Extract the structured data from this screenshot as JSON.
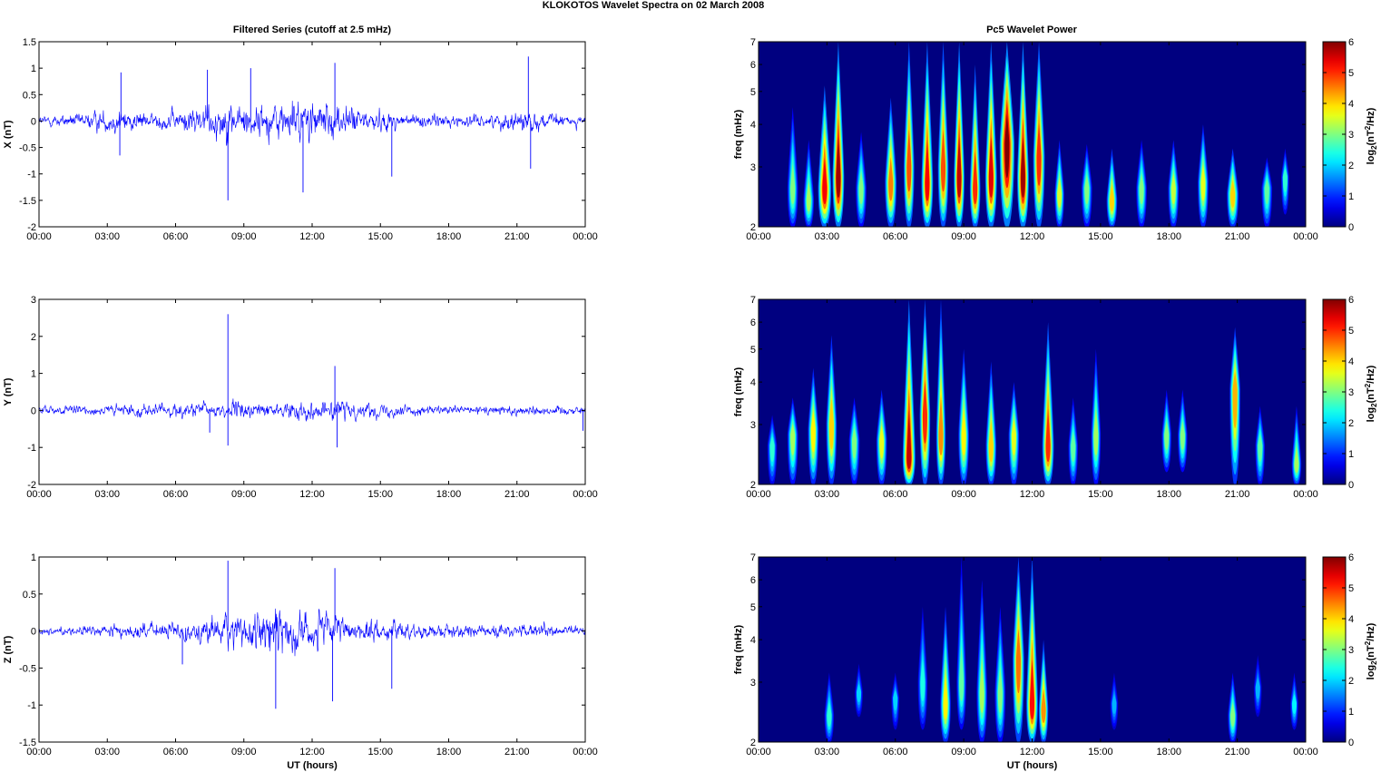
{
  "figure_title": "KLOKOTOS Wavelet Spectra on 02 March     2008",
  "left_column_title": "Filtered Series (cutoff at 2.5 mHz)",
  "right_column_title": "Pc5 Wavelet Power",
  "colors": {
    "trace": "#0000ff",
    "axis": "#000000",
    "background": "#ffffff"
  },
  "chart_data": [
    {
      "type": "line",
      "component": "X",
      "ylabel": "X (nT)",
      "xlabel": "",
      "xticks": [
        "00:00",
        "03:00",
        "06:00",
        "09:00",
        "12:00",
        "15:00",
        "18:00",
        "21:00",
        "00:00"
      ],
      "xlim_hours": [
        0,
        24
      ],
      "ylim": [
        -2,
        1.5
      ],
      "yticks": [
        -2,
        -1.5,
        -1,
        -0.5,
        0,
        0.5,
        1,
        1.5
      ],
      "ytick_labels": [
        "-2",
        "-1.5",
        "-1",
        "-0.5",
        "0",
        "0.5",
        "1",
        "1.5"
      ],
      "envelope": {
        "hours": [
          0,
          2,
          3,
          3.6,
          5,
          6,
          7,
          8.3,
          9,
          10.5,
          12,
          13,
          14,
          15,
          16,
          18,
          20,
          21,
          21.8,
          23,
          24
        ],
        "amplitude": [
          0.1,
          0.15,
          0.22,
          0.25,
          0.15,
          0.2,
          0.3,
          0.4,
          0.35,
          0.4,
          0.45,
          0.35,
          0.25,
          0.2,
          0.15,
          0.12,
          0.12,
          0.25,
          0.2,
          0.12,
          0.1
        ]
      },
      "spikes": [
        {
          "hour": 3.6,
          "value": 0.92
        },
        {
          "hour": 3.55,
          "value": -0.65
        },
        {
          "hour": 8.3,
          "value": -1.5
        },
        {
          "hour": 7.4,
          "value": 0.97
        },
        {
          "hour": 9.3,
          "value": 1.0
        },
        {
          "hour": 11.6,
          "value": -1.35
        },
        {
          "hour": 13.0,
          "value": 1.1
        },
        {
          "hour": 15.5,
          "value": -1.05
        },
        {
          "hour": 21.5,
          "value": 1.22
        },
        {
          "hour": 21.6,
          "value": -0.9
        }
      ]
    },
    {
      "type": "line",
      "component": "Y",
      "ylabel": "Y (nT)",
      "xlabel": "",
      "xticks": [
        "00:00",
        "03:00",
        "06:00",
        "09:00",
        "12:00",
        "15:00",
        "18:00",
        "21:00",
        "00:00"
      ],
      "xlim_hours": [
        0,
        24
      ],
      "ylim": [
        -2,
        3
      ],
      "yticks": [
        -2,
        -1,
        0,
        1,
        2,
        3
      ],
      "ytick_labels": [
        "-2",
        "-1",
        "0",
        "1",
        "2",
        "3"
      ],
      "envelope": {
        "hours": [
          0,
          3,
          6,
          8.3,
          10,
          12,
          13,
          15,
          18,
          21,
          24
        ],
        "amplitude": [
          0.12,
          0.15,
          0.2,
          0.25,
          0.2,
          0.25,
          0.3,
          0.18,
          0.12,
          0.15,
          0.12
        ]
      },
      "spikes": [
        {
          "hour": 8.3,
          "value": 2.6
        },
        {
          "hour": 8.3,
          "value": -0.95
        },
        {
          "hour": 13.0,
          "value": 1.2
        },
        {
          "hour": 13.1,
          "value": -1.0
        },
        {
          "hour": 7.5,
          "value": -0.6
        },
        {
          "hour": 23.9,
          "value": -0.55
        }
      ]
    },
    {
      "type": "line",
      "component": "Z",
      "ylabel": "Z (nT)",
      "xlabel": "UT (hours)",
      "xticks": [
        "00:00",
        "03:00",
        "06:00",
        "09:00",
        "12:00",
        "15:00",
        "18:00",
        "21:00",
        "00:00"
      ],
      "xlim_hours": [
        0,
        24
      ],
      "ylim": [
        -1.5,
        1
      ],
      "yticks": [
        -1.5,
        -1,
        -0.5,
        0,
        0.5,
        1
      ],
      "ytick_labels": [
        "-1.5",
        "-1",
        "-0.5",
        "0",
        "0.5",
        "1"
      ],
      "envelope": {
        "hours": [
          0,
          2,
          3.5,
          5,
          7,
          8.3,
          9.5,
          10.5,
          11.5,
          12.5,
          13.5,
          15,
          17,
          20,
          21.5,
          24
        ],
        "amplitude": [
          0.05,
          0.07,
          0.1,
          0.12,
          0.15,
          0.25,
          0.3,
          0.35,
          0.3,
          0.3,
          0.18,
          0.15,
          0.1,
          0.08,
          0.1,
          0.06
        ]
      },
      "spikes": [
        {
          "hour": 8.3,
          "value": 0.95
        },
        {
          "hour": 10.4,
          "value": -1.05
        },
        {
          "hour": 13.0,
          "value": 0.85
        },
        {
          "hour": 12.9,
          "value": -0.95
        },
        {
          "hour": 15.5,
          "value": -0.78
        },
        {
          "hour": 6.3,
          "value": -0.45
        }
      ]
    },
    {
      "type": "heatmap",
      "component": "X",
      "ylabel": "freq (mHz)",
      "xlabel": "",
      "xticks": [
        "00:00",
        "03:00",
        "06:00",
        "09:00",
        "12:00",
        "15:00",
        "18:00",
        "21:00",
        "00:00"
      ],
      "xlim_hours": [
        0,
        24
      ],
      "yscale": "log",
      "ylim": [
        2,
        7
      ],
      "yticks": [
        2,
        3,
        4,
        5,
        6,
        7
      ],
      "ytick_labels": [
        "2",
        "3",
        "4",
        "5",
        "6",
        "7"
      ],
      "colorbar": {
        "label_base": "log",
        "label_sub": "2",
        "label_mid": "(nT",
        "label_sup": "2",
        "label_end": "/Hz)",
        "range": [
          0,
          6
        ],
        "ticks": [
          0,
          1,
          2,
          3,
          4,
          5,
          6
        ],
        "colormap": "jet"
      },
      "bursts": [
        {
          "hour": 1.5,
          "fmin": 2.0,
          "fmax": 4.5,
          "peak": 2.6,
          "power": 3.0,
          "width": 0.2
        },
        {
          "hour": 2.2,
          "fmin": 2.0,
          "fmax": 3.6,
          "peak": 2.4,
          "power": 3.2,
          "width": 0.2
        },
        {
          "hour": 2.9,
          "fmin": 2.0,
          "fmax": 5.2,
          "peak": 2.6,
          "power": 5.3,
          "width": 0.25
        },
        {
          "hour": 3.5,
          "fmin": 2.0,
          "fmax": 7.0,
          "peak": 2.8,
          "power": 5.8,
          "width": 0.22
        },
        {
          "hour": 4.5,
          "fmin": 2.0,
          "fmax": 3.8,
          "peak": 2.6,
          "power": 3.0,
          "width": 0.2
        },
        {
          "hour": 5.8,
          "fmin": 2.0,
          "fmax": 4.8,
          "peak": 2.7,
          "power": 4.5,
          "width": 0.22
        },
        {
          "hour": 6.6,
          "fmin": 2.0,
          "fmax": 7.0,
          "peak": 3.0,
          "power": 4.8,
          "width": 0.2
        },
        {
          "hour": 7.4,
          "fmin": 2.0,
          "fmax": 7.0,
          "peak": 2.7,
          "power": 5.3,
          "width": 0.22
        },
        {
          "hour": 8.1,
          "fmin": 2.0,
          "fmax": 7.0,
          "peak": 3.0,
          "power": 4.8,
          "width": 0.2
        },
        {
          "hour": 8.8,
          "fmin": 2.0,
          "fmax": 7.0,
          "peak": 2.8,
          "power": 5.6,
          "width": 0.2
        },
        {
          "hour": 9.5,
          "fmin": 2.0,
          "fmax": 6.0,
          "peak": 2.6,
          "power": 5.0,
          "width": 0.2
        },
        {
          "hour": 10.2,
          "fmin": 2.0,
          "fmax": 7.0,
          "peak": 2.8,
          "power": 5.4,
          "width": 0.22
        },
        {
          "hour": 10.9,
          "fmin": 2.0,
          "fmax": 7.0,
          "peak": 3.5,
          "power": 6.0,
          "width": 0.28
        },
        {
          "hour": 11.6,
          "fmin": 2.0,
          "fmax": 7.0,
          "peak": 2.8,
          "power": 5.8,
          "width": 0.22
        },
        {
          "hour": 12.3,
          "fmin": 2.0,
          "fmax": 7.0,
          "peak": 3.2,
          "power": 5.0,
          "width": 0.22
        },
        {
          "hour": 13.2,
          "fmin": 2.0,
          "fmax": 3.6,
          "peak": 2.5,
          "power": 3.5,
          "width": 0.18
        },
        {
          "hour": 14.4,
          "fmin": 2.0,
          "fmax": 3.5,
          "peak": 2.6,
          "power": 3.0,
          "width": 0.2
        },
        {
          "hour": 15.5,
          "fmin": 2.0,
          "fmax": 3.4,
          "peak": 2.4,
          "power": 4.0,
          "width": 0.2
        },
        {
          "hour": 16.8,
          "fmin": 2.0,
          "fmax": 3.6,
          "peak": 2.6,
          "power": 3.0,
          "width": 0.2
        },
        {
          "hour": 18.2,
          "fmin": 2.0,
          "fmax": 3.6,
          "peak": 2.6,
          "power": 3.4,
          "width": 0.2
        },
        {
          "hour": 19.5,
          "fmin": 2.0,
          "fmax": 4.0,
          "peak": 2.7,
          "power": 3.6,
          "width": 0.2
        },
        {
          "hour": 20.8,
          "fmin": 2.0,
          "fmax": 3.4,
          "peak": 2.5,
          "power": 4.0,
          "width": 0.22
        },
        {
          "hour": 22.3,
          "fmin": 2.0,
          "fmax": 3.2,
          "peak": 2.6,
          "power": 2.8,
          "width": 0.2
        },
        {
          "hour": 23.1,
          "fmin": 2.2,
          "fmax": 3.4,
          "peak": 2.8,
          "power": 2.5,
          "width": 0.15
        }
      ]
    },
    {
      "type": "heatmap",
      "component": "Y",
      "ylabel": "freq (mHz)",
      "xlabel": "",
      "xticks": [
        "00:00",
        "03:00",
        "06:00",
        "09:00",
        "12:00",
        "15:00",
        "18:00",
        "21:00",
        "00:00"
      ],
      "xlim_hours": [
        0,
        24
      ],
      "yscale": "log",
      "ylim": [
        2,
        7
      ],
      "yticks": [
        2,
        3,
        4,
        5,
        6,
        7
      ],
      "ytick_labels": [
        "2",
        "3",
        "4",
        "5",
        "6",
        "7"
      ],
      "colorbar": {
        "label_base": "log",
        "label_sub": "2",
        "label_mid": "(nT",
        "label_sup": "2",
        "label_end": "/Hz)",
        "range": [
          0,
          6
        ],
        "ticks": [
          0,
          1,
          2,
          3,
          4,
          5,
          6
        ],
        "colormap": "jet"
      },
      "bursts": [
        {
          "hour": 0.6,
          "fmin": 2.0,
          "fmax": 3.2,
          "peak": 2.6,
          "power": 2.5,
          "width": 0.18
        },
        {
          "hour": 1.5,
          "fmin": 2.0,
          "fmax": 3.6,
          "peak": 2.8,
          "power": 3.2,
          "width": 0.2
        },
        {
          "hour": 2.4,
          "fmin": 2.0,
          "fmax": 4.4,
          "peak": 2.9,
          "power": 3.8,
          "width": 0.2
        },
        {
          "hour": 3.2,
          "fmin": 2.0,
          "fmax": 5.5,
          "peak": 3.0,
          "power": 4.0,
          "width": 0.2
        },
        {
          "hour": 4.2,
          "fmin": 2.0,
          "fmax": 3.6,
          "peak": 2.7,
          "power": 3.0,
          "width": 0.2
        },
        {
          "hour": 5.4,
          "fmin": 2.0,
          "fmax": 3.8,
          "peak": 2.7,
          "power": 3.6,
          "width": 0.2
        },
        {
          "hour": 6.6,
          "fmin": 2.0,
          "fmax": 7.0,
          "peak": 2.4,
          "power": 5.6,
          "width": 0.24
        },
        {
          "hour": 7.3,
          "fmin": 2.0,
          "fmax": 7.0,
          "peak": 3.2,
          "power": 5.0,
          "width": 0.2
        },
        {
          "hour": 8.0,
          "fmin": 2.0,
          "fmax": 7.0,
          "peak": 2.8,
          "power": 4.4,
          "width": 0.18
        },
        {
          "hour": 9.0,
          "fmin": 2.0,
          "fmax": 5.0,
          "peak": 2.8,
          "power": 3.8,
          "width": 0.2
        },
        {
          "hour": 10.2,
          "fmin": 2.0,
          "fmax": 4.6,
          "peak": 2.6,
          "power": 4.0,
          "width": 0.2
        },
        {
          "hour": 11.2,
          "fmin": 2.0,
          "fmax": 4.0,
          "peak": 2.8,
          "power": 3.6,
          "width": 0.2
        },
        {
          "hour": 12.7,
          "fmin": 2.0,
          "fmax": 6.0,
          "peak": 2.6,
          "power": 5.0,
          "width": 0.22
        },
        {
          "hour": 13.8,
          "fmin": 2.0,
          "fmax": 3.6,
          "peak": 2.6,
          "power": 2.8,
          "width": 0.18
        },
        {
          "hour": 14.8,
          "fmin": 2.0,
          "fmax": 5.0,
          "peak": 2.8,
          "power": 3.2,
          "width": 0.18
        },
        {
          "hour": 17.9,
          "fmin": 2.2,
          "fmax": 3.8,
          "peak": 2.8,
          "power": 3.0,
          "width": 0.18
        },
        {
          "hour": 18.6,
          "fmin": 2.2,
          "fmax": 3.8,
          "peak": 2.8,
          "power": 3.0,
          "width": 0.18
        },
        {
          "hour": 20.9,
          "fmin": 2.0,
          "fmax": 5.8,
          "peak": 3.8,
          "power": 4.2,
          "width": 0.2
        },
        {
          "hour": 22.0,
          "fmin": 2.0,
          "fmax": 3.4,
          "peak": 2.6,
          "power": 2.8,
          "width": 0.18
        },
        {
          "hour": 23.6,
          "fmin": 2.0,
          "fmax": 3.4,
          "peak": 2.3,
          "power": 3.2,
          "width": 0.18
        }
      ]
    },
    {
      "type": "heatmap",
      "component": "Z",
      "ylabel": "freq (mHz)",
      "xlabel": "UT (hours)",
      "xticks": [
        "00:00",
        "03:00",
        "06:00",
        "09:00",
        "12:00",
        "15:00",
        "18:00",
        "21:00",
        "00:00"
      ],
      "xlim_hours": [
        0,
        24
      ],
      "yscale": "log",
      "ylim": [
        2,
        7
      ],
      "yticks": [
        2,
        3,
        4,
        5,
        6,
        7
      ],
      "ytick_labels": [
        "2",
        "3",
        "4",
        "5",
        "6",
        "7"
      ],
      "colorbar": {
        "label_base": "log",
        "label_sub": "2",
        "label_mid": "(nT",
        "label_sup": "2",
        "label_end": "/Hz)",
        "range": [
          0,
          6
        ],
        "ticks": [
          0,
          1,
          2,
          3,
          4,
          5,
          6
        ],
        "colormap": "jet"
      },
      "bursts": [
        {
          "hour": 3.1,
          "fmin": 2.0,
          "fmax": 3.2,
          "peak": 2.4,
          "power": 2.5,
          "width": 0.18
        },
        {
          "hour": 4.4,
          "fmin": 2.4,
          "fmax": 3.4,
          "peak": 2.8,
          "power": 2.0,
          "width": 0.15
        },
        {
          "hour": 6.0,
          "fmin": 2.2,
          "fmax": 3.2,
          "peak": 2.7,
          "power": 2.0,
          "width": 0.15
        },
        {
          "hour": 7.2,
          "fmin": 2.2,
          "fmax": 5.0,
          "peak": 3.0,
          "power": 2.4,
          "width": 0.18
        },
        {
          "hour": 8.2,
          "fmin": 2.0,
          "fmax": 5.0,
          "peak": 2.6,
          "power": 3.8,
          "width": 0.2
        },
        {
          "hour": 8.9,
          "fmin": 2.2,
          "fmax": 7.0,
          "peak": 3.0,
          "power": 2.8,
          "width": 0.18
        },
        {
          "hour": 9.8,
          "fmin": 2.0,
          "fmax": 6.0,
          "peak": 2.8,
          "power": 3.2,
          "width": 0.2
        },
        {
          "hour": 10.6,
          "fmin": 2.0,
          "fmax": 5.0,
          "peak": 2.8,
          "power": 3.0,
          "width": 0.2
        },
        {
          "hour": 11.4,
          "fmin": 2.0,
          "fmax": 7.0,
          "peak": 3.5,
          "power": 4.6,
          "width": 0.22
        },
        {
          "hour": 12.0,
          "fmin": 2.0,
          "fmax": 7.0,
          "peak": 2.6,
          "power": 5.2,
          "width": 0.22
        },
        {
          "hour": 12.5,
          "fmin": 2.0,
          "fmax": 4.0,
          "peak": 2.5,
          "power": 4.4,
          "width": 0.18
        },
        {
          "hour": 15.6,
          "fmin": 2.2,
          "fmax": 3.2,
          "peak": 2.6,
          "power": 1.8,
          "width": 0.15
        },
        {
          "hour": 20.8,
          "fmin": 2.0,
          "fmax": 3.2,
          "peak": 2.4,
          "power": 3.0,
          "width": 0.18
        },
        {
          "hour": 21.9,
          "fmin": 2.4,
          "fmax": 3.6,
          "peak": 2.9,
          "power": 1.8,
          "width": 0.15
        },
        {
          "hour": 23.5,
          "fmin": 2.2,
          "fmax": 3.2,
          "peak": 2.6,
          "power": 2.2,
          "width": 0.15
        }
      ]
    }
  ]
}
